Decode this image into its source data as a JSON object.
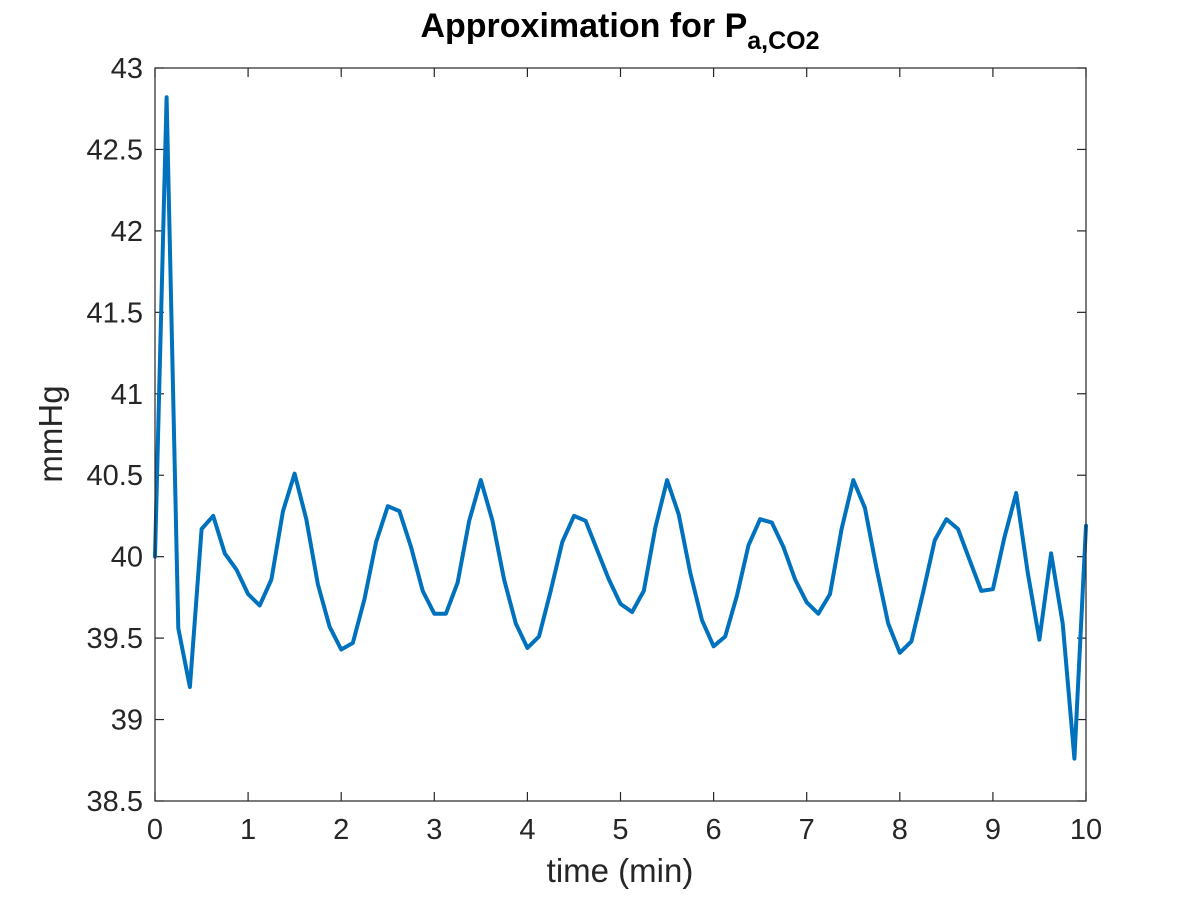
{
  "chart_data": {
    "type": "line",
    "title": "Approximation for P",
    "title_subscript": "a,CO2",
    "xlabel": "time (min)",
    "ylabel": "mmHg",
    "xlim": [
      0,
      10
    ],
    "ylim": [
      38.5,
      43
    ],
    "x_ticks": [
      "0",
      "1",
      "2",
      "3",
      "4",
      "5",
      "6",
      "7",
      "8",
      "9",
      "10"
    ],
    "y_ticks": [
      "38.5",
      "39",
      "39.5",
      "40",
      "40.5",
      "41",
      "41.5",
      "42",
      "42.5",
      "43"
    ],
    "grid": false,
    "series": [
      {
        "color": "#0072BD",
        "x": [
          0,
          0.125,
          0.25,
          0.375,
          0.5,
          0.625,
          0.75,
          0.875,
          1.0,
          1.125,
          1.25,
          1.375,
          1.5,
          1.625,
          1.75,
          1.875,
          2.0,
          2.125,
          2.25,
          2.375,
          2.5,
          2.625,
          2.75,
          2.875,
          3.0,
          3.125,
          3.25,
          3.375,
          3.5,
          3.625,
          3.75,
          3.875,
          4.0,
          4.125,
          4.25,
          4.375,
          4.5,
          4.625,
          4.75,
          4.875,
          5.0,
          5.125,
          5.25,
          5.375,
          5.5,
          5.625,
          5.75,
          5.875,
          6.0,
          6.125,
          6.25,
          6.375,
          6.5,
          6.625,
          6.75,
          6.875,
          7.0,
          7.125,
          7.25,
          7.375,
          7.5,
          7.625,
          7.75,
          7.875,
          8.0,
          8.125,
          8.25,
          8.375,
          8.5,
          8.625,
          8.75,
          8.875,
          9.0,
          9.125,
          9.25,
          9.375,
          9.5,
          9.625,
          9.75,
          9.875,
          10.0
        ],
        "y": [
          40.0,
          42.82,
          39.56,
          39.2,
          40.17,
          40.25,
          40.02,
          39.92,
          39.77,
          39.7,
          39.86,
          40.28,
          40.51,
          40.23,
          39.83,
          39.57,
          39.43,
          39.47,
          39.74,
          40.09,
          40.31,
          40.28,
          40.06,
          39.79,
          39.65,
          39.65,
          39.84,
          40.22,
          40.47,
          40.22,
          39.86,
          39.59,
          39.44,
          39.51,
          39.79,
          40.09,
          40.25,
          40.22,
          40.04,
          39.86,
          39.71,
          39.66,
          39.79,
          40.18,
          40.47,
          40.26,
          39.9,
          39.61,
          39.45,
          39.51,
          39.76,
          40.07,
          40.23,
          40.21,
          40.06,
          39.86,
          39.72,
          39.65,
          39.77,
          40.17,
          40.47,
          40.3,
          39.93,
          39.59,
          39.41,
          39.48,
          39.78,
          40.1,
          40.23,
          40.17,
          39.98,
          39.79,
          39.8,
          40.12,
          40.39,
          39.9,
          39.49,
          40.02,
          39.59,
          38.76,
          40.19
        ]
      }
    ]
  }
}
